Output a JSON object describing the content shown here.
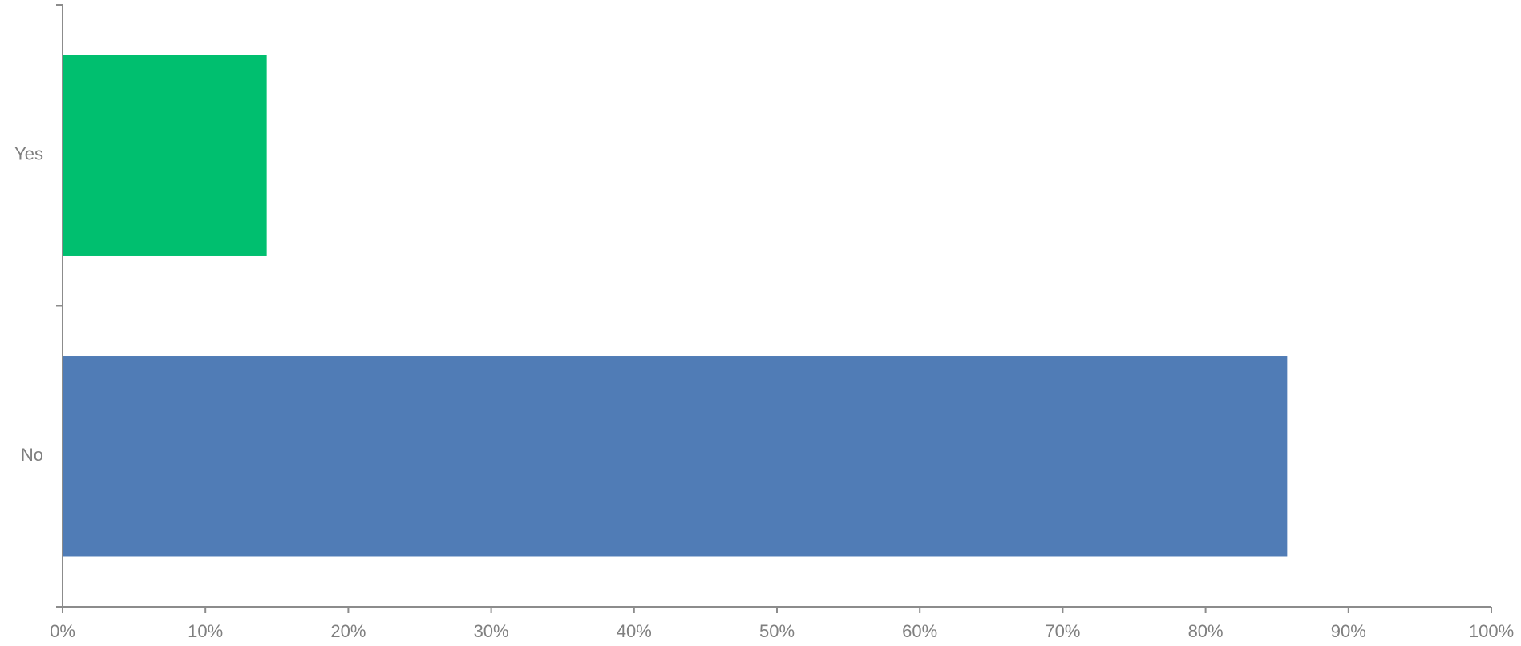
{
  "chart_data": {
    "type": "bar",
    "orientation": "horizontal",
    "categories": [
      "Yes",
      "No"
    ],
    "values": [
      14.29,
      85.71
    ],
    "colors": [
      "#00BF6F",
      "#507CB6"
    ],
    "title": "",
    "xlabel": "",
    "ylabel": "",
    "xlim": [
      0,
      100
    ],
    "xticks": [
      "0%",
      "10%",
      "20%",
      "30%",
      "40%",
      "50%",
      "60%",
      "70%",
      "80%",
      "90%",
      "100%"
    ],
    "grid": false,
    "legend": "none"
  }
}
